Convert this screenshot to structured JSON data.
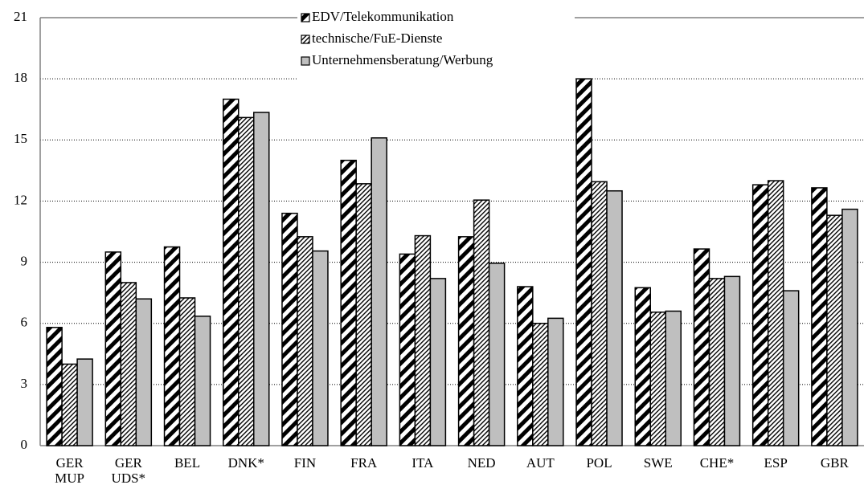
{
  "chart_data": {
    "type": "bar",
    "categories": [
      "GER\nMUP",
      "GER\nUDS*",
      "BEL",
      "DNK*",
      "FIN",
      "FRA",
      "ITA",
      "NED",
      "AUT",
      "POL",
      "SWE",
      "CHE*",
      "ESP",
      "GBR"
    ],
    "series": [
      {
        "name": "EDV/Telekommunikation",
        "color": "#000000",
        "pattern": "wide-diagonal",
        "values": [
          5.8,
          9.5,
          9.75,
          17.0,
          11.4,
          14.0,
          9.4,
          10.25,
          7.8,
          18.0,
          7.75,
          9.65,
          12.8,
          12.65
        ]
      },
      {
        "name": "technische/FuE-Dienste",
        "color": "#000000",
        "pattern": "fine-diagonal",
        "values": [
          4.0,
          8.0,
          7.25,
          16.1,
          10.25,
          12.85,
          10.3,
          12.05,
          6.0,
          12.95,
          6.55,
          8.2,
          13.0,
          11.3
        ]
      },
      {
        "name": "Unternehmensberatung/Werbung",
        "color": "#bfbfbf",
        "pattern": "solid",
        "values": [
          4.25,
          7.2,
          6.35,
          16.35,
          9.55,
          15.1,
          8.2,
          8.95,
          6.25,
          12.5,
          6.6,
          8.3,
          7.6,
          11.6
        ]
      }
    ],
    "ylim": [
      0,
      21
    ],
    "yticks": [
      0,
      3,
      6,
      9,
      12,
      15,
      18,
      21
    ],
    "grid": true,
    "legend": "top"
  }
}
